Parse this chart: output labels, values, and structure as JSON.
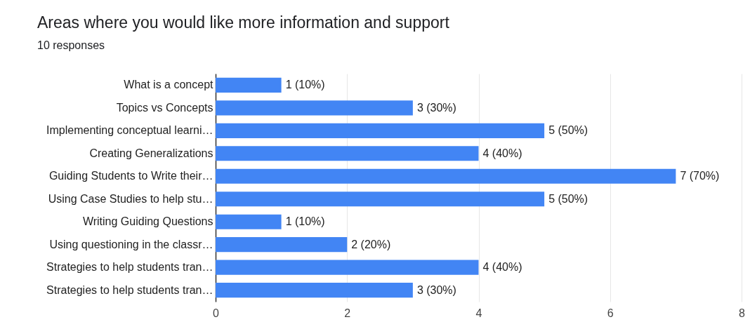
{
  "chart_data": {
    "type": "bar",
    "orientation": "horizontal",
    "title": "Areas where you would like more information and support",
    "subtitle": "10 responses",
    "categories": [
      "What is a concept",
      "Topics vs Concepts",
      "Implementing conceptual learni…",
      "Creating Generalizations",
      "Guiding Students to Write their…",
      "Using Case Studies to help stu…",
      "Writing Guiding Questions",
      "Using questioning in the classr…",
      "Strategies to help students tran…",
      "Strategies to help students tran…"
    ],
    "values": [
      1,
      3,
      5,
      4,
      7,
      5,
      1,
      2,
      4,
      3
    ],
    "value_labels": [
      "1 (10%)",
      "3 (30%)",
      "5 (50%)",
      "4 (40%)",
      "7 (70%)",
      "5 (50%)",
      "1 (10%)",
      "2 (20%)",
      "4 (40%)",
      "3 (30%)"
    ],
    "color": "#4285f4",
    "xlim": [
      0,
      8
    ],
    "xticks": [
      0,
      2,
      4,
      6,
      8
    ],
    "grid": "x"
  }
}
